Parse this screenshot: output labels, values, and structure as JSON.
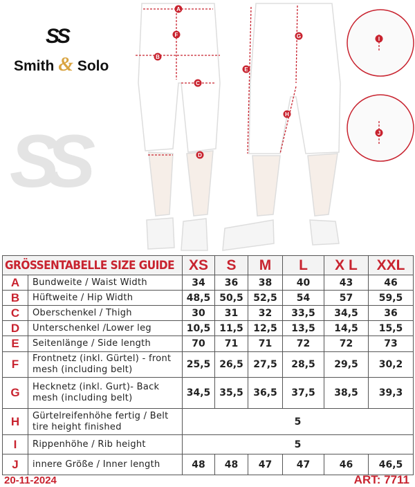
{
  "brand": {
    "logo_mark": "SS",
    "name_part1": "Smith",
    "ampersand": "&",
    "name_part2": "Solo",
    "watermark": "SS"
  },
  "diagram_labels": [
    "A",
    "B",
    "C",
    "D",
    "E",
    "F",
    "G",
    "H",
    "I",
    "J"
  ],
  "colors": {
    "accent": "#c8232f",
    "gold": "#d9a441"
  },
  "table": {
    "title": "GRÖSSENTABELLE SIZE GUIDE",
    "sizes": [
      "XS",
      "S",
      "M",
      "L",
      "X L",
      "XXL"
    ],
    "rows": [
      {
        "letter": "A",
        "desc": "Bundweite /  Waist Width",
        "values": [
          "34",
          "36",
          "38",
          "40",
          "43",
          "46"
        ]
      },
      {
        "letter": "B",
        "desc": "Hüftweite / Hip Width",
        "values": [
          "48,5",
          "50,5",
          "52,5",
          "54",
          "57",
          "59,5"
        ]
      },
      {
        "letter": "C",
        "desc": "Oberschenkel / Thigh",
        "values": [
          "30",
          "31",
          "32",
          "33,5",
          "34,5",
          "36"
        ]
      },
      {
        "letter": "D",
        "desc": "Unterschenkel /Lower leg",
        "values": [
          "10,5",
          "11,5",
          "12,5",
          "13,5",
          "14,5",
          "15,5"
        ]
      },
      {
        "letter": "E",
        "desc": "Seitenlänge / Side length",
        "values": [
          "70",
          "71",
          "71",
          "72",
          "72",
          "73"
        ]
      },
      {
        "letter": "F",
        "desc": "Frontnetz (inkl. Gürtel) - front mesh (including belt)",
        "values": [
          "25,5",
          "26,5",
          "27,5",
          "28,5",
          "29,5",
          "30,2"
        ]
      },
      {
        "letter": "G",
        "desc": "Hecknetz (inkl. Gurt)- Back mesh (including belt)",
        "values": [
          "34,5",
          "35,5",
          "36,5",
          "37,5",
          "38,5",
          "39,3"
        ]
      },
      {
        "letter": "H",
        "desc": "Gürtelreifenhöhe fertig / Belt tire height finished",
        "merged": "5"
      },
      {
        "letter": "I",
        "desc": "Rippenhöhe / Rib height",
        "merged": "5"
      },
      {
        "letter": "J",
        "desc": "innere Größe / Inner length",
        "values": [
          "48",
          "48",
          "47",
          "47",
          "46",
          "46,5"
        ]
      }
    ]
  },
  "footer": {
    "date": "20-11-2024",
    "article": "ART: 7711"
  }
}
